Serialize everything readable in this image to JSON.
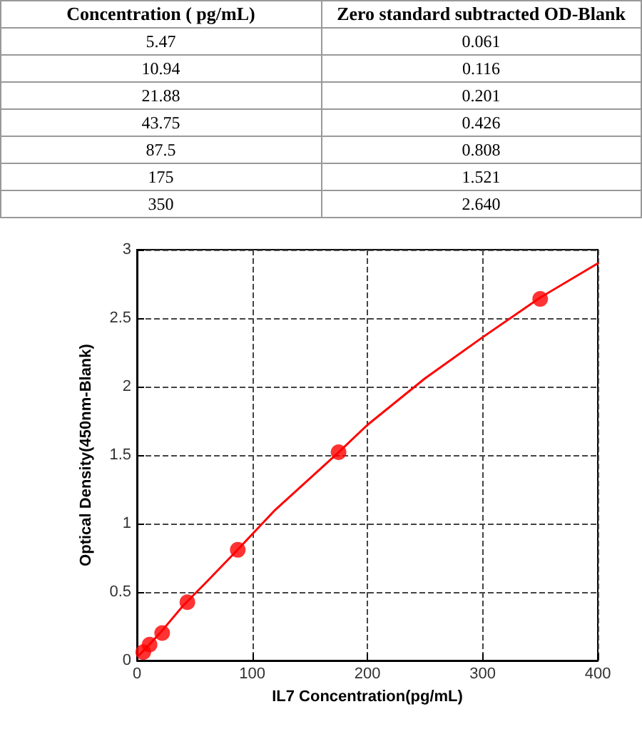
{
  "chart_data": [
    {
      "type": "other",
      "annotations": [
        "Concentration ( pg/mL)",
        "Zero standard subtracted OD-Blank",
        "5.47",
        "0.061",
        "10.94",
        "0.116",
        "21.88",
        "0.201",
        "43.75",
        "0.426",
        "87.5",
        "0.808",
        "175",
        "1.521",
        "350",
        "2.640"
      ]
    },
    {
      "type": "scatter",
      "xlabel": "IL7 Concentration(pg/mL)",
      "ylabel": "Optical Density(450nm-Blank)",
      "xlim": [
        0,
        400
      ],
      "xticks": [
        0,
        100,
        200,
        300,
        400
      ],
      "ylim": [
        0,
        3
      ],
      "yticks": [
        0,
        0.5,
        1,
        1.5,
        2,
        2.5,
        3
      ],
      "grid": true,
      "series": [
        {
          "type": "scatter",
          "color": "#ff0000",
          "marker": "circle",
          "x": [
            5.47,
            10.94,
            21.88,
            43.75,
            87.5,
            175,
            350
          ],
          "values": [
            0.061,
            0.116,
            0.201,
            0.426,
            0.808,
            1.521,
            2.64
          ]
        },
        {
          "type": "line",
          "color": "#ff0000",
          "marker": "none",
          "line_style": "solid",
          "x": [
            2,
            10,
            20,
            40,
            60,
            87.5,
            120,
            175,
            200,
            250,
            300,
            350,
            400
          ],
          "values": [
            0.04,
            0.11,
            0.2,
            0.4,
            0.57,
            0.81,
            1.1,
            1.52,
            1.72,
            2.06,
            2.36,
            2.65,
            2.9
          ]
        }
      ]
    }
  ]
}
